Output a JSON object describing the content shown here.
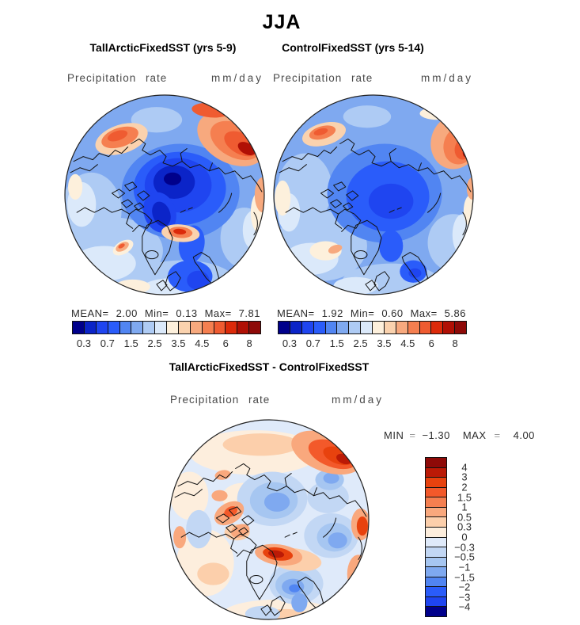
{
  "season": "JJA",
  "panels": [
    {
      "title": "TallArcticFixedSST (yrs 5-9)",
      "var_label": "Precipitation rate",
      "units": "mm/day",
      "stats": {
        "mean_label": "MEAN=",
        "mean": "2.00",
        "min_label": "Min=",
        "min": "0.13",
        "max_label": "Max=",
        "max": "7.81"
      }
    },
    {
      "title": "ControlFixedSST (yrs 5-14)",
      "var_label": "Precipitation rate",
      "units": "mm/day",
      "stats": {
        "mean_label": "MEAN=",
        "mean": "1.92",
        "min_label": "Min=",
        "min": "0.60",
        "max_label": "Max=",
        "max": "5.86"
      }
    }
  ],
  "diff_panel": {
    "title": "TallArcticFixedSST - ControlFixedSST",
    "var_label": "Precipitation rate",
    "units": "mm/day",
    "min_label": "MIN",
    "eq": "=",
    "min_value": "−1.30",
    "max_label": "MAX",
    "max_value": "4.00"
  },
  "precip_colorbar": {
    "colors": [
      "#00008b",
      "#0b24c8",
      "#1f45f0",
      "#2a5cfa",
      "#5185f2",
      "#7fa9f0",
      "#aecbf4",
      "#dbe9fa",
      "#fdf0dc",
      "#fad2ae",
      "#f7a97e",
      "#f57f50",
      "#ef5b31",
      "#dc2a0a",
      "#b01005",
      "#8e0a08"
    ],
    "ticks": [
      {
        "label": "0.3",
        "pos": 0.0625
      },
      {
        "label": "0.7",
        "pos": 0.1875
      },
      {
        "label": "1.5",
        "pos": 0.3125
      },
      {
        "label": "2.5",
        "pos": 0.4375
      },
      {
        "label": "3.5",
        "pos": 0.5625
      },
      {
        "label": "4.5",
        "pos": 0.6875
      },
      {
        "label": "6",
        "pos": 0.8125
      },
      {
        "label": "8",
        "pos": 0.9375
      }
    ]
  },
  "diff_colorbar": {
    "colors": [
      "#8e0a08",
      "#bb1a06",
      "#e8420e",
      "#f3592a",
      "#f57f50",
      "#f9a87d",
      "#fccfab",
      "#fdeedd",
      "#dfeafa",
      "#c2d7f4",
      "#a6c6f1",
      "#7fa9f0",
      "#5185f2",
      "#2a5cfa",
      "#1f45f0",
      "#00008b"
    ],
    "ticks": [
      {
        "label": "4",
        "pos": 0.0625
      },
      {
        "label": "3",
        "pos": 0.125
      },
      {
        "label": "2",
        "pos": 0.1875
      },
      {
        "label": "1.5",
        "pos": 0.25
      },
      {
        "label": "1",
        "pos": 0.3125
      },
      {
        "label": "0.5",
        "pos": 0.375
      },
      {
        "label": "0.3",
        "pos": 0.4375
      },
      {
        "label": "0",
        "pos": 0.5
      },
      {
        "label": "−0.3",
        "pos": 0.5625
      },
      {
        "label": "−0.5",
        "pos": 0.625
      },
      {
        "label": "−1",
        "pos": 0.6875
      },
      {
        "label": "−1.5",
        "pos": 0.75
      },
      {
        "label": "−2",
        "pos": 0.8125
      },
      {
        "label": "−3",
        "pos": 0.875
      },
      {
        "label": "−4",
        "pos": 0.9375
      }
    ]
  },
  "chart_data": [
    {
      "type": "heatmap",
      "subtype": "polar-stereographic-filled-contour-map",
      "season": "JJA",
      "title": "TallArcticFixedSST (yrs 5-9)",
      "variable": "Precipitation rate",
      "units": "mm/day",
      "stats": {
        "mean": 2.0,
        "min": 0.13,
        "max": 7.81
      },
      "colorbar": {
        "orientation": "horizontal",
        "tick_labels": [
          0.3,
          0.7,
          1.5,
          2.5,
          3.5,
          4.5,
          6,
          8
        ],
        "palette": "blue-to-red, 16 classes",
        "legend_position": "below map"
      }
    },
    {
      "type": "heatmap",
      "subtype": "polar-stereographic-filled-contour-map",
      "season": "JJA",
      "title": "ControlFixedSST (yrs 5-14)",
      "variable": "Precipitation rate",
      "units": "mm/day",
      "stats": {
        "mean": 1.92,
        "min": 0.6,
        "max": 5.86
      },
      "colorbar": {
        "orientation": "horizontal",
        "tick_labels": [
          0.3,
          0.7,
          1.5,
          2.5,
          3.5,
          4.5,
          6,
          8
        ],
        "palette": "blue-to-red, 16 classes",
        "legend_position": "below map"
      }
    },
    {
      "type": "heatmap",
      "subtype": "polar-stereographic-filled-contour-map",
      "season": "JJA",
      "title": "TallArcticFixedSST - ControlFixedSST",
      "variable": "Precipitation rate",
      "units": "mm/day",
      "stats": {
        "min": -1.3,
        "max": 4.0
      },
      "colorbar": {
        "orientation": "vertical",
        "tick_labels": [
          4,
          3,
          2,
          1.5,
          1,
          0.5,
          0.3,
          0,
          -0.3,
          -0.5,
          -1,
          -1.5,
          -2,
          -3,
          -4
        ],
        "palette": "red-to-blue diverging, 16 classes",
        "legend_position": "right of map"
      }
    }
  ]
}
